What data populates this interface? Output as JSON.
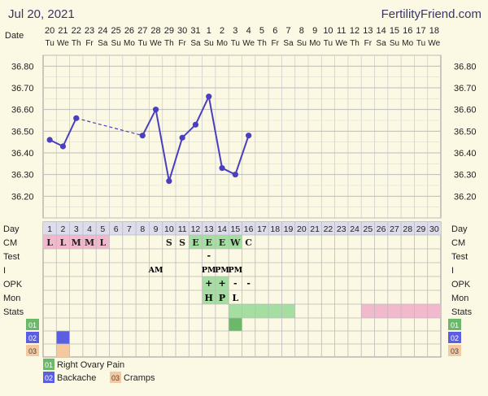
{
  "header": {
    "date": "Jul 20, 2021",
    "brand": "FertilityFriend.com"
  },
  "row_labels": {
    "date": "Date",
    "day": "Day",
    "cm": "CM",
    "test": "Test",
    "i": "I",
    "opk": "OPK",
    "mon": "Mon",
    "stats": "Stats"
  },
  "dates": [
    "20",
    "21",
    "22",
    "23",
    "24",
    "25",
    "26",
    "27",
    "28",
    "29",
    "30",
    "31",
    "1",
    "2",
    "3",
    "4",
    "5",
    "6",
    "7",
    "8",
    "9",
    "10",
    "11",
    "12",
    "13",
    "14",
    "15",
    "16",
    "17",
    "18"
  ],
  "weekdays": [
    "Tu",
    "We",
    "Th",
    "Fr",
    "Sa",
    "Su",
    "Mo",
    "Tu",
    "We",
    "Th",
    "Fr",
    "Sa",
    "Su",
    "Mo",
    "Tu",
    "We",
    "Th",
    "Fr",
    "Sa",
    "Su",
    "Mo",
    "Tu",
    "We",
    "Th",
    "Fr",
    "Sa",
    "Su",
    "Mo",
    "Tu",
    "We"
  ],
  "temp_ticks": [
    "36.80",
    "36.70",
    "36.60",
    "36.50",
    "36.40",
    "36.30",
    "36.20"
  ],
  "chart_data": {
    "type": "line",
    "title": "",
    "xlabel": "Day",
    "ylabel": "",
    "ylim": [
      36.1,
      36.85
    ],
    "x": [
      1,
      2,
      3,
      4,
      5,
      6,
      7,
      8,
      9,
      10,
      11,
      12,
      13,
      14,
      15,
      16
    ],
    "temps": [
      36.46,
      36.43,
      36.56,
      null,
      null,
      null,
      null,
      36.48,
      36.6,
      36.27,
      36.47,
      36.53,
      36.66,
      36.33,
      36.3,
      36.48
    ],
    "dashed_connection": [
      3,
      8
    ]
  },
  "grid": {
    "days": [
      "1",
      "2",
      "3",
      "4",
      "5",
      "6",
      "7",
      "8",
      "9",
      "10",
      "11",
      "12",
      "13",
      "14",
      "15",
      "16",
      "17",
      "18",
      "19",
      "20",
      "21",
      "22",
      "23",
      "24",
      "25",
      "26",
      "27",
      "28",
      "29",
      "30"
    ],
    "cm": [
      "L",
      "L",
      "M",
      "M",
      "L",
      "",
      "",
      "",
      "",
      "S",
      "S",
      "E",
      "E",
      "E",
      "W",
      "C",
      "",
      "",
      "",
      "",
      "",
      "",
      "",
      "",
      "",
      "",
      "",
      "",
      "",
      ""
    ],
    "cm_highlight": {
      "L": "#f2b8cc",
      "M": "#f2b8cc",
      "E": "#a4dea0",
      "W": "#a4dea0"
    },
    "test": {
      "13": "-"
    },
    "i": {
      "9": "AM",
      "13": "PM",
      "14": "PM",
      "15": "PM"
    },
    "opk": {
      "13": "+",
      "14": "+",
      "15": "-",
      "16": "-"
    },
    "opk_highlight": [
      13,
      14
    ],
    "mon": {
      "13": "H",
      "14": "P",
      "15": "L"
    },
    "mon_highlight": [
      13,
      14
    ],
    "stats_green": [
      15,
      19
    ],
    "stats_pink": [
      25,
      30
    ],
    "custom_rows": [
      {
        "code": "01",
        "color": "#6cb86a",
        "days": [
          15
        ]
      },
      {
        "code": "02",
        "color": "#5b5ee0",
        "days": [
          2
        ]
      },
      {
        "code": "03",
        "color": "#f5c9a0",
        "days": [
          2
        ]
      }
    ]
  },
  "legend": [
    {
      "code": "01",
      "label": "Right Ovary Pain",
      "color": "#6cb86a"
    },
    {
      "code": "02",
      "label": "Backache",
      "color": "#5b5ee0"
    },
    {
      "code": "03",
      "label": "Cramps",
      "color": "#f5c9a0"
    }
  ]
}
